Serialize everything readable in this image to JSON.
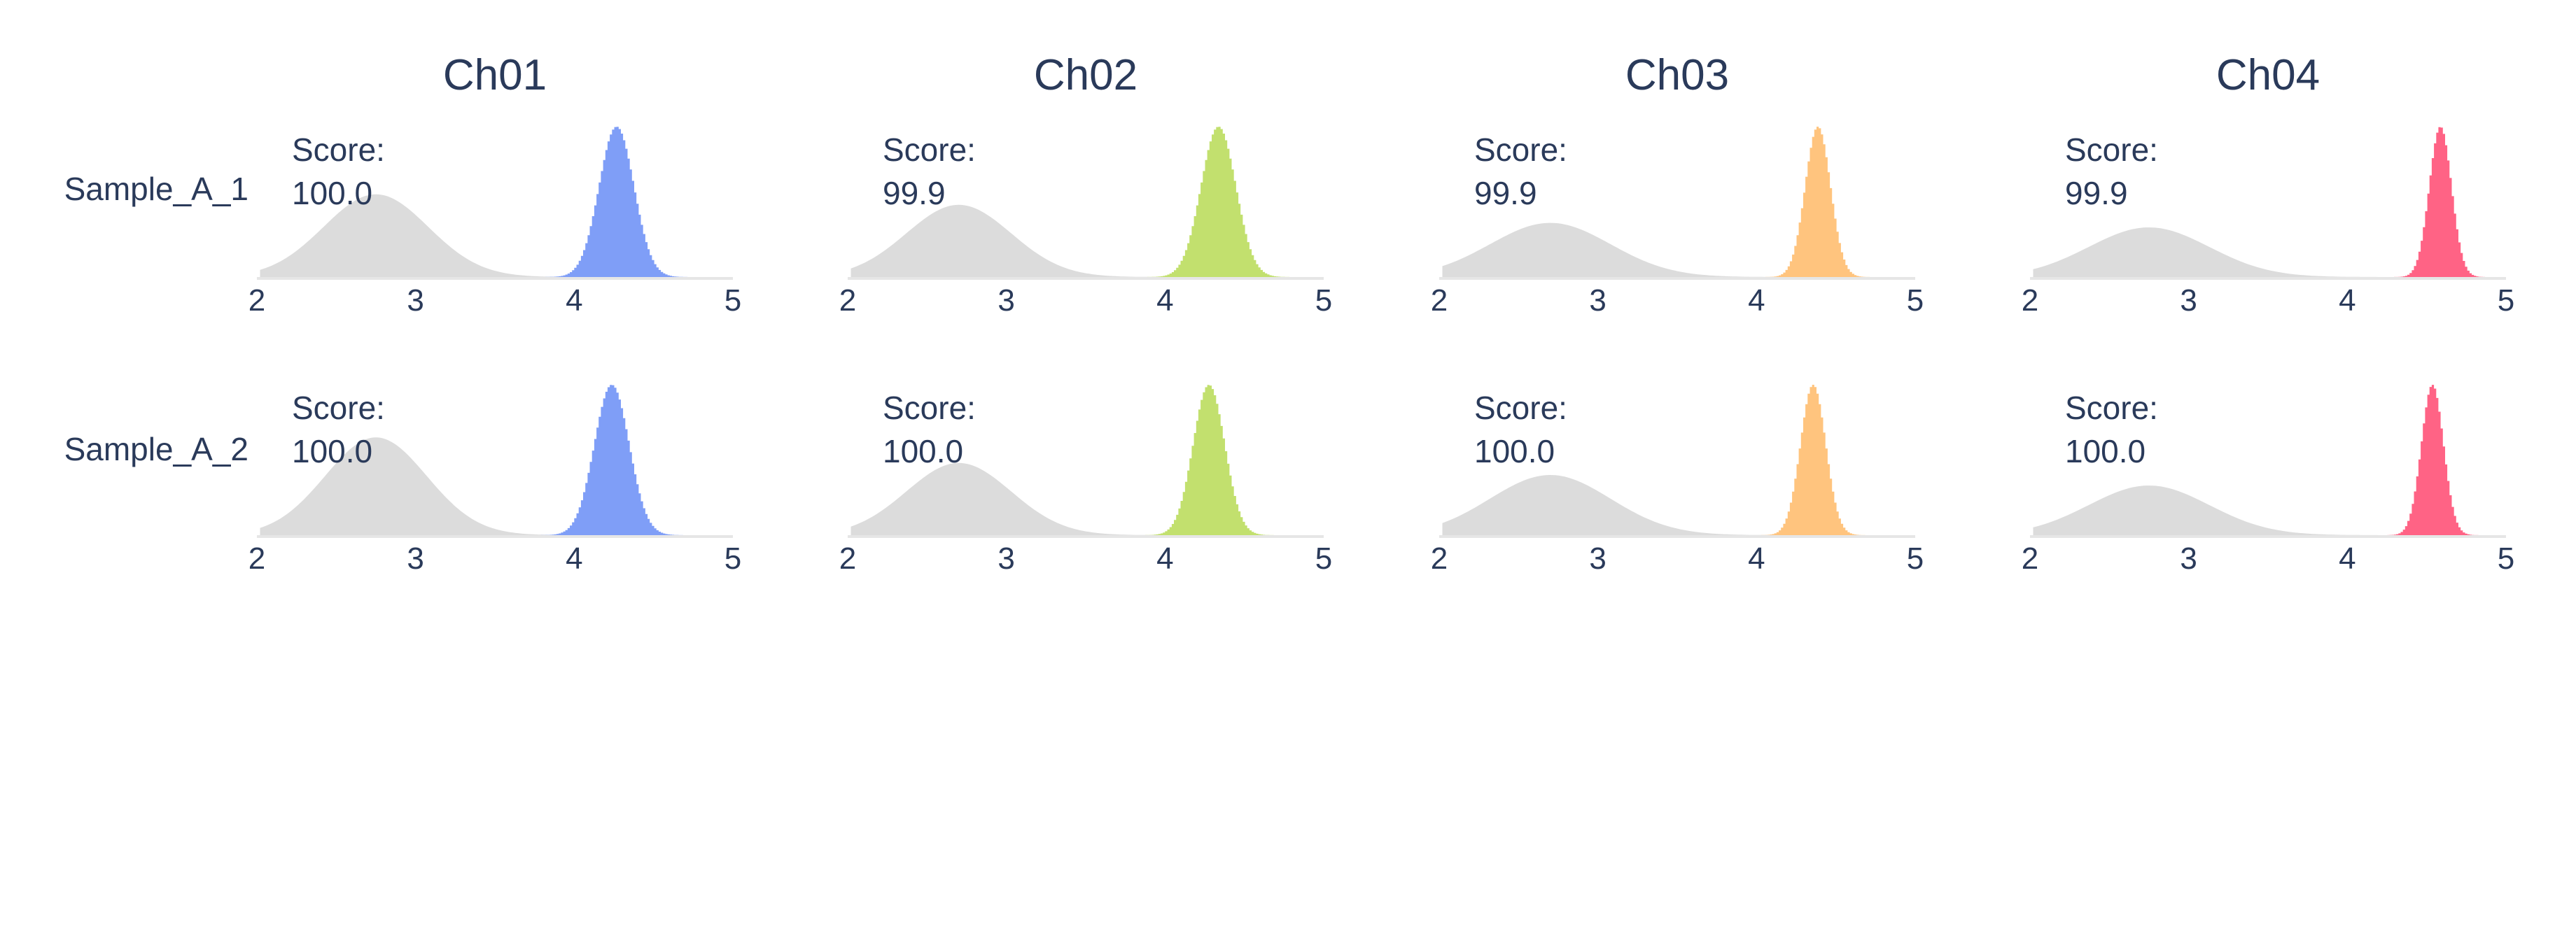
{
  "chart_data": {
    "type": "area",
    "channels": [
      "Ch01",
      "Ch02",
      "Ch03",
      "Ch04"
    ],
    "samples": [
      "Sample_A_1",
      "Sample_A_2"
    ],
    "score_label": "Score:",
    "xlim": [
      2,
      5
    ],
    "x_ticks": [
      "2",
      "3",
      "4",
      "5"
    ],
    "grid": false,
    "colors": {
      "background_dist": "#dcdcdc",
      "Ch01": "#7f9ef7",
      "Ch02": "#c2e06e",
      "Ch03": "#ffc47e",
      "Ch04": "#ff6385"
    },
    "panels": [
      {
        "sample": "Sample_A_1",
        "channel": "Ch01",
        "score": "100.0",
        "background": {
          "center": 2.75,
          "height": 0.55,
          "spread": 0.33
        },
        "signal": {
          "center": 4.26,
          "height": 1.0,
          "spread": 0.11
        }
      },
      {
        "sample": "Sample_A_1",
        "channel": "Ch02",
        "score": "99.9",
        "background": {
          "center": 2.7,
          "height": 0.48,
          "spread": 0.33
        },
        "signal": {
          "center": 4.33,
          "height": 1.0,
          "spread": 0.11
        }
      },
      {
        "sample": "Sample_A_1",
        "channel": "Ch03",
        "score": "99.9",
        "background": {
          "center": 2.7,
          "height": 0.36,
          "spread": 0.38
        },
        "signal": {
          "center": 4.38,
          "height": 1.0,
          "spread": 0.08
        }
      },
      {
        "sample": "Sample_A_1",
        "channel": "Ch04",
        "score": "99.9",
        "background": {
          "center": 2.75,
          "height": 0.33,
          "spread": 0.38
        },
        "signal": {
          "center": 4.58,
          "height": 1.0,
          "spread": 0.07
        }
      },
      {
        "sample": "Sample_A_2",
        "channel": "Ch01",
        "score": "100.0",
        "background": {
          "center": 2.75,
          "height": 0.65,
          "spread": 0.32
        },
        "signal": {
          "center": 4.23,
          "height": 1.0,
          "spread": 0.11
        }
      },
      {
        "sample": "Sample_A_2",
        "channel": "Ch02",
        "score": "100.0",
        "background": {
          "center": 2.7,
          "height": 0.48,
          "spread": 0.33
        },
        "signal": {
          "center": 4.27,
          "height": 1.0,
          "spread": 0.1
        }
      },
      {
        "sample": "Sample_A_2",
        "channel": "Ch03",
        "score": "100.0",
        "background": {
          "center": 2.7,
          "height": 0.4,
          "spread": 0.38
        },
        "signal": {
          "center": 4.35,
          "height": 1.0,
          "spread": 0.08
        }
      },
      {
        "sample": "Sample_A_2",
        "channel": "Ch04",
        "score": "100.0",
        "background": {
          "center": 2.75,
          "height": 0.33,
          "spread": 0.38
        },
        "signal": {
          "center": 4.53,
          "height": 1.0,
          "spread": 0.07
        }
      }
    ]
  }
}
